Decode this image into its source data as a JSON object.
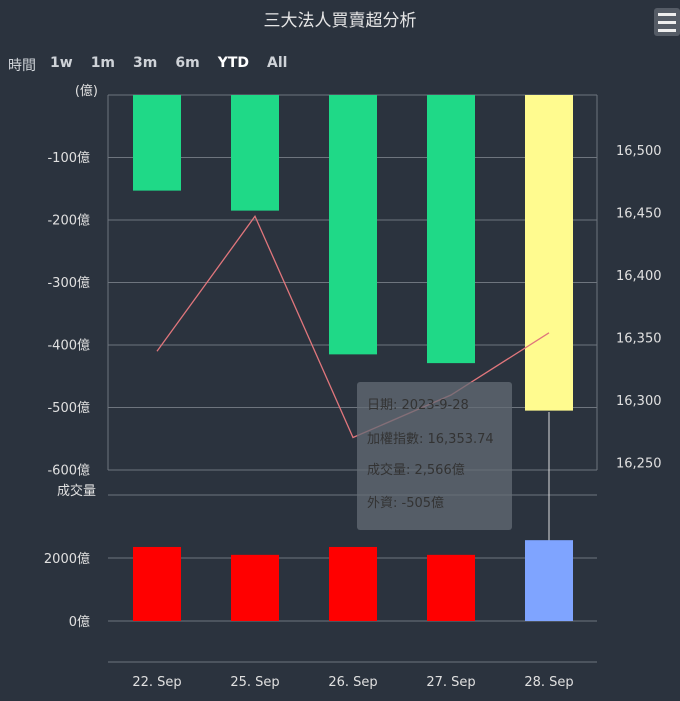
{
  "title": "三大法人買賣超分析",
  "range_selector": {
    "label": "時間",
    "buttons": [
      "1w",
      "1m",
      "3m",
      "6m",
      "YTD",
      "All"
    ],
    "selected": "YTD"
  },
  "menu_icon": "hamburger-icon",
  "chart_data": [
    {
      "type": "bar+line",
      "categories": [
        "22. Sep",
        "25. Sep",
        "26. Sep",
        "27. Sep",
        "28. Sep"
      ],
      "left_axis": {
        "unit_label": "(億)",
        "ticks": [
          "-100億",
          "-200億",
          "-300億",
          "-400億",
          "-500億",
          "-600億"
        ],
        "range": [
          -600,
          0
        ]
      },
      "right_axis": {
        "ticks": [
          "16,500",
          "16,450",
          "16,400",
          "16,350",
          "16,300",
          "16,250"
        ],
        "range": [
          16250,
          16550
        ]
      },
      "series": [
        {
          "name": "外資",
          "type": "bar",
          "values": [
            -153,
            -185,
            -415,
            -429,
            -505
          ],
          "colors": [
            "#1fd987",
            "#1fd987",
            "#1fd987",
            "#1fd987",
            "#fffb8f"
          ]
        },
        {
          "name": "加權指數",
          "type": "line",
          "values": [
            16339,
            16447,
            16270,
            16304,
            16353.74
          ],
          "color": "#e0767c"
        }
      ]
    },
    {
      "type": "bar",
      "title": "成交量",
      "categories": [
        "22. Sep",
        "25. Sep",
        "26. Sep",
        "27. Sep",
        "28. Sep"
      ],
      "ticks": [
        "2000億",
        "0億"
      ],
      "range": [
        0,
        4000
      ],
      "series": [
        {
          "name": "成交量",
          "values": [
            2350,
            2100,
            2350,
            2100,
            2566
          ],
          "colors": [
            "#ff0000",
            "#ff0000",
            "#ff0000",
            "#ff0000",
            "#7fa4ff"
          ]
        }
      ]
    }
  ],
  "tooltip": {
    "date": "日期: 2023-9-28",
    "index": "加權指數: 16,353.74",
    "volume": "成交量: 2,566億",
    "foreign": "外資: -505億"
  }
}
